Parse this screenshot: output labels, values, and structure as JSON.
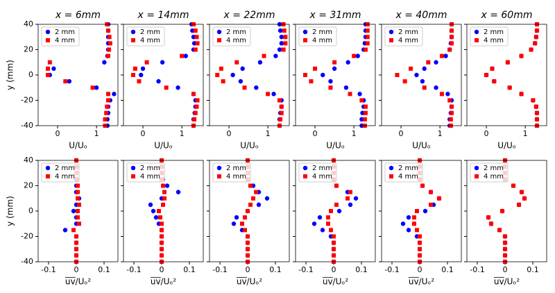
{
  "chart_data": [
    {
      "type": "scatter",
      "title": "x = 6mm",
      "xlabel": "U/Uₒ",
      "ylabel": "y (mm)",
      "overline": false,
      "xlim": [
        -0.5,
        1.55
      ],
      "ylim": [
        -40,
        40
      ],
      "xticks": [
        0,
        1
      ],
      "yticks": [
        -40,
        -20,
        0,
        20,
        40
      ],
      "ytick_labels": true,
      "legend": "upper left",
      "y": [
        40,
        35,
        30,
        25,
        20,
        15,
        10,
        5,
        0,
        -5,
        -10,
        -15,
        -20,
        -25,
        -30,
        -35,
        -40
      ],
      "series": [
        {
          "name": "2 mm",
          "color": "#0000ff",
          "marker": "circle",
          "x": [
            1.3,
            1.3,
            1.3,
            1.3,
            1.3,
            1.28,
            1.2,
            -0.1,
            -0.2,
            0.3,
            1.0,
            1.45,
            1.35,
            1.3,
            1.3,
            1.28,
            1.28
          ]
        },
        {
          "name": "4 mm",
          "color": "#ff0000",
          "marker": "square",
          "x": [
            1.27,
            1.3,
            1.33,
            1.35,
            1.32,
            1.3,
            -0.2,
            -0.25,
            -0.25,
            0.2,
            0.9,
            1.3,
            1.3,
            1.27,
            1.25,
            1.22,
            1.22
          ]
        }
      ]
    },
    {
      "type": "scatter",
      "title": "x = 14mm",
      "xlabel": "U/Uₒ",
      "overline": false,
      "xlim": [
        -0.5,
        1.55
      ],
      "ylim": [
        -40,
        40
      ],
      "xticks": [
        0,
        1
      ],
      "yticks": [
        -40,
        -20,
        0,
        20,
        40
      ],
      "ytick_labels": false,
      "legend": "upper left",
      "y": [
        40,
        35,
        30,
        25,
        20,
        15,
        10,
        5,
        0,
        -5,
        -10,
        -15,
        -20,
        -25,
        -30,
        -35,
        -40
      ],
      "series": [
        {
          "name": "2 mm",
          "color": "#0000ff",
          "marker": "circle",
          "x": [
            1.25,
            1.27,
            1.3,
            1.32,
            1.3,
            1.1,
            0.5,
            0.0,
            -0.05,
            0.4,
            0.9,
            1.3,
            1.35,
            1.35,
            1.33,
            1.3,
            1.3
          ]
        },
        {
          "name": "4 mm",
          "color": "#ff0000",
          "marker": "square",
          "x": [
            1.3,
            1.35,
            1.38,
            1.4,
            1.35,
            1.0,
            0.1,
            -0.2,
            -0.25,
            -0.1,
            0.6,
            1.3,
            1.4,
            1.38,
            1.35,
            1.32,
            1.3
          ]
        }
      ]
    },
    {
      "type": "scatter",
      "title": "x = 22mm",
      "xlabel": "U/Uₒ",
      "overline": false,
      "xlim": [
        -0.5,
        1.55
      ],
      "ylim": [
        -40,
        40
      ],
      "xticks": [
        0,
        1
      ],
      "yticks": [
        -40,
        -20,
        0,
        20,
        40
      ],
      "ytick_labels": false,
      "legend": "upper left",
      "y": [
        40,
        35,
        30,
        25,
        20,
        15,
        10,
        5,
        0,
        -5,
        -10,
        -15,
        -20,
        -25,
        -30,
        -35,
        -40
      ],
      "series": [
        {
          "name": "2 mm",
          "color": "#0000ff",
          "marker": "circle",
          "x": [
            1.3,
            1.32,
            1.35,
            1.35,
            1.3,
            1.2,
            0.8,
            0.35,
            0.1,
            0.3,
            0.7,
            1.15,
            1.35,
            1.35,
            1.32,
            1.3,
            1.3
          ]
        },
        {
          "name": "4 mm",
          "color": "#ff0000",
          "marker": "square",
          "x": [
            1.4,
            1.42,
            1.45,
            1.45,
            1.4,
            0.9,
            0.2,
            -0.2,
            -0.3,
            -0.15,
            0.4,
            1.0,
            1.3,
            1.35,
            1.35,
            1.32,
            1.3
          ]
        }
      ]
    },
    {
      "type": "scatter",
      "title": "x = 31mm",
      "xlabel": "U/Uₒ",
      "overline": false,
      "xlim": [
        -0.5,
        1.55
      ],
      "ylim": [
        -40,
        40
      ],
      "xticks": [
        0,
        1
      ],
      "yticks": [
        -40,
        -20,
        0,
        20,
        40
      ],
      "ytick_labels": false,
      "legend": "upper left",
      "y": [
        40,
        35,
        30,
        25,
        20,
        15,
        10,
        5,
        0,
        -5,
        -10,
        -15,
        -20,
        -25,
        -30,
        -35,
        -40
      ],
      "series": [
        {
          "name": "2 mm",
          "color": "#0000ff",
          "marker": "circle",
          "x": [
            1.3,
            1.3,
            1.3,
            1.28,
            1.25,
            1.1,
            0.85,
            0.5,
            0.2,
            0.4,
            0.8,
            1.15,
            1.25,
            1.25,
            1.22,
            1.2,
            1.2
          ]
        },
        {
          "name": "4 mm",
          "color": "#ff0000",
          "marker": "square",
          "x": [
            1.35,
            1.35,
            1.35,
            1.35,
            1.3,
            1.0,
            0.5,
            0.0,
            -0.25,
            -0.1,
            0.4,
            0.9,
            1.2,
            1.3,
            1.3,
            1.28,
            1.28
          ]
        }
      ]
    },
    {
      "type": "scatter",
      "title": "x = 40mm",
      "xlabel": "U/Uₒ",
      "overline": false,
      "xlim": [
        -0.5,
        1.55
      ],
      "ylim": [
        -40,
        40
      ],
      "xticks": [
        0,
        1
      ],
      "yticks": [
        -40,
        -20,
        0,
        20,
        40
      ],
      "ytick_labels": false,
      "legend": "upper left",
      "y": [
        40,
        35,
        30,
        25,
        20,
        15,
        10,
        5,
        0,
        -5,
        -10,
        -15,
        -20,
        -25,
        -30,
        -35,
        -40
      ],
      "series": [
        {
          "name": "2 mm",
          "color": "#0000ff",
          "marker": "circle",
          "x": [
            1.3,
            1.3,
            1.3,
            1.28,
            1.25,
            1.15,
            0.9,
            0.6,
            0.4,
            0.55,
            0.9,
            1.2,
            1.3,
            1.3,
            1.28,
            1.25,
            1.25
          ]
        },
        {
          "name": "4 mm",
          "color": "#ff0000",
          "marker": "square",
          "x": [
            1.3,
            1.3,
            1.3,
            1.3,
            1.25,
            1.05,
            0.7,
            0.25,
            -0.1,
            0.1,
            0.6,
            1.05,
            1.25,
            1.3,
            1.3,
            1.28,
            1.28
          ]
        }
      ]
    },
    {
      "type": "scatter",
      "title": "x = 60mm",
      "xlabel": "U/Uₒ",
      "overline": false,
      "xlim": [
        -0.5,
        1.55
      ],
      "ylim": [
        -40,
        40
      ],
      "xticks": [
        0,
        1
      ],
      "yticks": [
        -40,
        -20,
        0,
        20,
        40
      ],
      "ytick_labels": false,
      "legend": "upper left",
      "y": [
        40,
        35,
        30,
        25,
        20,
        15,
        10,
        5,
        0,
        -5,
        -10,
        -15,
        -20,
        -25,
        -30,
        -35,
        -40
      ],
      "series": [
        {
          "name": "2 mm",
          "color": "#0000ff",
          "marker": "circle",
          "x": [
            1.3,
            1.3,
            1.28,
            1.25,
            1.15,
            0.9,
            0.55,
            0.15,
            0.0,
            0.2,
            0.6,
            0.9,
            1.2,
            1.28,
            1.3,
            1.3,
            1.3
          ]
        },
        {
          "name": "4 mm",
          "color": "#ff0000",
          "marker": "square",
          "x": [
            1.3,
            1.3,
            1.28,
            1.25,
            1.15,
            0.9,
            0.55,
            0.15,
            0.0,
            0.2,
            0.6,
            0.9,
            1.2,
            1.28,
            1.3,
            1.3,
            1.3
          ]
        }
      ]
    },
    {
      "type": "scatter",
      "xlabel": "uv/Uₒ²",
      "ylabel": "y (mm)",
      "overline": true,
      "xlim": [
        -0.1375,
        0.15
      ],
      "ylim": [
        -40,
        40
      ],
      "xticks": [
        -0.1,
        0,
        0.1
      ],
      "yticks": [
        -40,
        -20,
        0,
        20,
        40
      ],
      "ytick_labels": true,
      "legend": "upper left",
      "y": [
        40,
        35,
        30,
        25,
        20,
        15,
        10,
        5,
        0,
        -5,
        -10,
        -15,
        -20,
        -25,
        -30,
        -35,
        -40
      ],
      "series": [
        {
          "name": "2 mm",
          "color": "#0000ff",
          "marker": "circle",
          "x": [
            0,
            0,
            0,
            0,
            0,
            0,
            0.01,
            0,
            -0.01,
            0,
            0,
            -0.04,
            0,
            0,
            0,
            0,
            0
          ]
        },
        {
          "name": "4 mm",
          "color": "#ff0000",
          "marker": "square",
          "x": [
            0,
            0,
            0,
            0.002,
            0.005,
            0.005,
            0.005,
            0.01,
            0.005,
            0.005,
            0.01,
            -0.01,
            0,
            0,
            0,
            0,
            0
          ]
        }
      ]
    },
    {
      "type": "scatter",
      "xlabel": "uv/Uₒ²",
      "overline": true,
      "xlim": [
        -0.1375,
        0.15
      ],
      "ylim": [
        -40,
        40
      ],
      "xticks": [
        -0.1,
        0,
        0.1
      ],
      "yticks": [
        -40,
        -20,
        0,
        20,
        40
      ],
      "ytick_labels": false,
      "legend": "upper left",
      "y": [
        40,
        35,
        30,
        25,
        20,
        15,
        10,
        5,
        0,
        -5,
        -10,
        -15,
        -20,
        -25,
        -30,
        -35,
        -40
      ],
      "series": [
        {
          "name": "2 mm",
          "color": "#0000ff",
          "marker": "circle",
          "x": [
            0,
            0,
            0,
            0.005,
            0.02,
            0.06,
            0,
            -0.04,
            -0.03,
            -0.02,
            -0.01,
            0,
            0,
            0,
            0,
            0,
            0
          ]
        },
        {
          "name": "4 mm",
          "color": "#ff0000",
          "marker": "square",
          "x": [
            0,
            0,
            0,
            0,
            0.005,
            0.01,
            0.01,
            0.005,
            -0.01,
            -0.005,
            0,
            0,
            0,
            0,
            0,
            0,
            0
          ]
        }
      ]
    },
    {
      "type": "scatter",
      "xlabel": "uv/Uₒ²",
      "overline": true,
      "xlim": [
        -0.1375,
        0.15
      ],
      "ylim": [
        -40,
        40
      ],
      "xticks": [
        -0.1,
        0,
        0.1
      ],
      "yticks": [
        -40,
        -20,
        0,
        20,
        40
      ],
      "ytick_labels": false,
      "legend": "upper left",
      "y": [
        40,
        35,
        30,
        25,
        20,
        15,
        10,
        5,
        0,
        -5,
        -10,
        -15,
        -20,
        -25,
        -30,
        -35,
        -40
      ],
      "series": [
        {
          "name": "2 mm",
          "color": "#0000ff",
          "marker": "circle",
          "x": [
            0,
            0,
            0,
            0,
            0.02,
            0.04,
            0.07,
            0.04,
            0,
            -0.04,
            -0.05,
            -0.02,
            0,
            0,
            0,
            0,
            0
          ]
        },
        {
          "name": "4 mm",
          "color": "#ff0000",
          "marker": "square",
          "x": [
            0,
            0,
            0,
            0,
            0.01,
            0.03,
            0.02,
            0.01,
            0,
            -0.01,
            -0.02,
            -0.01,
            0,
            0,
            0,
            0,
            0
          ]
        }
      ]
    },
    {
      "type": "scatter",
      "xlabel": "uv/Uₒ²",
      "overline": true,
      "xlim": [
        -0.1375,
        0.15
      ],
      "ylim": [
        -40,
        40
      ],
      "xticks": [
        -0.1,
        0,
        0.1
      ],
      "yticks": [
        -40,
        -20,
        0,
        20,
        40
      ],
      "ytick_labels": false,
      "legend": "upper left",
      "y": [
        40,
        35,
        30,
        25,
        20,
        15,
        10,
        5,
        0,
        -5,
        -10,
        -15,
        -20,
        -25,
        -30,
        -35,
        -40
      ],
      "series": [
        {
          "name": "2 mm",
          "color": "#0000ff",
          "marker": "circle",
          "x": [
            0,
            0,
            0,
            0,
            0.01,
            0.05,
            0.08,
            0.06,
            0.02,
            -0.05,
            -0.07,
            -0.04,
            -0.01,
            0,
            0,
            0,
            0
          ]
        },
        {
          "name": "4 mm",
          "color": "#ff0000",
          "marker": "square",
          "x": [
            0,
            0,
            0,
            0,
            0.01,
            0.06,
            0.05,
            0.01,
            -0.01,
            -0.02,
            -0.02,
            -0.01,
            0,
            0,
            0,
            0,
            0
          ]
        }
      ]
    },
    {
      "type": "scatter",
      "xlabel": "uv/Uₒ²",
      "overline": true,
      "xlim": [
        -0.1375,
        0.15
      ],
      "ylim": [
        -40,
        40
      ],
      "xticks": [
        -0.1,
        0,
        0.1
      ],
      "yticks": [
        -40,
        -20,
        0,
        20,
        40
      ],
      "ytick_labels": false,
      "legend": "upper left",
      "y": [
        40,
        35,
        30,
        25,
        20,
        15,
        10,
        5,
        0,
        -5,
        -10,
        -15,
        -20,
        -25,
        -30,
        -35,
        -40
      ],
      "series": [
        {
          "name": "2 mm",
          "color": "#0000ff",
          "marker": "circle",
          "x": [
            0,
            0,
            0,
            0,
            0.01,
            0.04,
            0.07,
            0.05,
            0.02,
            -0.04,
            -0.06,
            -0.04,
            -0.01,
            0,
            0,
            0,
            0
          ]
        },
        {
          "name": "4 mm",
          "color": "#ff0000",
          "marker": "square",
          "x": [
            0,
            0,
            0,
            0,
            0.01,
            0.04,
            0.07,
            0.04,
            -0.01,
            -0.02,
            -0.02,
            -0.01,
            0,
            0,
            0,
            0,
            0
          ]
        }
      ]
    },
    {
      "type": "scatter",
      "xlabel": "uv/Uₒ²",
      "overline": true,
      "xlim": [
        -0.1375,
        0.15
      ],
      "ylim": [
        -40,
        40
      ],
      "xticks": [
        -0.1,
        0,
        0.1
      ],
      "yticks": [
        -40,
        -20,
        0,
        20,
        40
      ],
      "ytick_labels": false,
      "legend": "upper left",
      "y": [
        40,
        35,
        30,
        25,
        20,
        15,
        10,
        5,
        0,
        -5,
        -10,
        -15,
        -20,
        -25,
        -30,
        -35,
        -40
      ],
      "series": [
        {
          "name": "2 mm",
          "color": "#0000ff",
          "marker": "circle",
          "x": [
            0,
            0,
            0,
            0,
            0.03,
            0.06,
            0.07,
            0.05,
            -0.01,
            -0.06,
            -0.05,
            -0.02,
            0,
            0,
            0,
            0,
            0
          ]
        },
        {
          "name": "4 mm",
          "color": "#ff0000",
          "marker": "square",
          "x": [
            0,
            0,
            0,
            0,
            0.03,
            0.06,
            0.07,
            0.05,
            -0.01,
            -0.06,
            -0.05,
            -0.02,
            0,
            0,
            0,
            0,
            0
          ]
        }
      ]
    }
  ]
}
